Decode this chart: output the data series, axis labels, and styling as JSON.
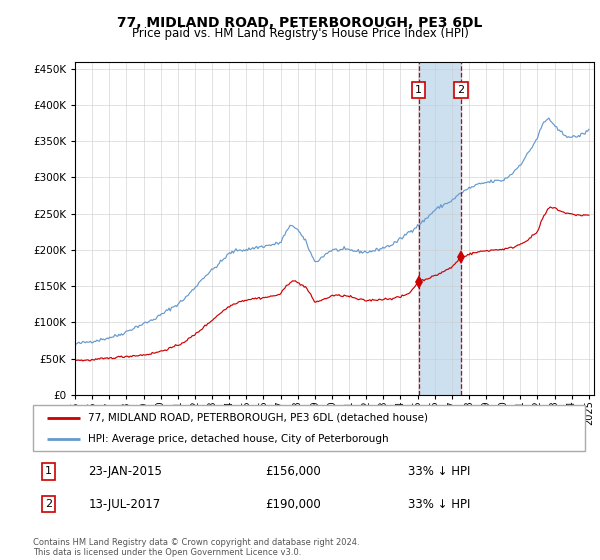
{
  "title": "77, MIDLAND ROAD, PETERBOROUGH, PE3 6DL",
  "subtitle": "Price paid vs. HM Land Registry's House Price Index (HPI)",
  "footnote": "Contains HM Land Registry data © Crown copyright and database right 2024.\nThis data is licensed under the Open Government Licence v3.0.",
  "legend_line1": "77, MIDLAND ROAD, PETERBOROUGH, PE3 6DL (detached house)",
  "legend_line2": "HPI: Average price, detached house, City of Peterborough",
  "transaction1_date": "23-JAN-2015",
  "transaction1_price": "£156,000",
  "transaction1_hpi": "33% ↓ HPI",
  "transaction2_date": "13-JUL-2017",
  "transaction2_price": "£190,000",
  "transaction2_hpi": "33% ↓ HPI",
  "color_red": "#cc0000",
  "color_blue": "#6699cc",
  "color_shading": "#cce0f0",
  "bg_color": "#f0f0f0",
  "ylim": [
    0,
    460000
  ],
  "yticks": [
    0,
    50000,
    100000,
    150000,
    200000,
    250000,
    300000,
    350000,
    400000,
    450000
  ],
  "xlim_start": 1995.0,
  "xlim_end": 2025.3,
  "transaction1_x": 2015.06,
  "transaction1_y": 156000,
  "transaction2_x": 2017.53,
  "transaction2_y": 190000,
  "hpi_blue_anchors": [
    [
      1995.0,
      70000
    ],
    [
      1995.5,
      72000
    ],
    [
      1996.0,
      74000
    ],
    [
      1996.5,
      76000
    ],
    [
      1997.0,
      79000
    ],
    [
      1997.5,
      82000
    ],
    [
      1998.0,
      87000
    ],
    [
      1998.5,
      93000
    ],
    [
      1999.0,
      98000
    ],
    [
      1999.5,
      103000
    ],
    [
      2000.0,
      110000
    ],
    [
      2000.5,
      118000
    ],
    [
      2001.0,
      125000
    ],
    [
      2001.5,
      135000
    ],
    [
      2002.0,
      148000
    ],
    [
      2002.5,
      162000
    ],
    [
      2003.0,
      172000
    ],
    [
      2003.5,
      183000
    ],
    [
      2004.0,
      195000
    ],
    [
      2004.5,
      200000
    ],
    [
      2005.0,
      200000
    ],
    [
      2005.5,
      203000
    ],
    [
      2006.0,
      205000
    ],
    [
      2006.5,
      207000
    ],
    [
      2007.0,
      210000
    ],
    [
      2007.33,
      225000
    ],
    [
      2007.67,
      235000
    ],
    [
      2008.0,
      228000
    ],
    [
      2008.5,
      210000
    ],
    [
      2009.0,
      183000
    ],
    [
      2009.33,
      188000
    ],
    [
      2009.67,
      195000
    ],
    [
      2010.0,
      200000
    ],
    [
      2010.5,
      200000
    ],
    [
      2011.0,
      200000
    ],
    [
      2011.5,
      198000
    ],
    [
      2012.0,
      197000
    ],
    [
      2012.5,
      199000
    ],
    [
      2013.0,
      203000
    ],
    [
      2013.5,
      207000
    ],
    [
      2014.0,
      215000
    ],
    [
      2014.5,
      225000
    ],
    [
      2015.0,
      233000
    ],
    [
      2015.5,
      243000
    ],
    [
      2016.0,
      255000
    ],
    [
      2016.5,
      262000
    ],
    [
      2017.0,
      268000
    ],
    [
      2017.5,
      278000
    ],
    [
      2018.0,
      285000
    ],
    [
      2018.5,
      290000
    ],
    [
      2019.0,
      293000
    ],
    [
      2019.5,
      295000
    ],
    [
      2020.0,
      296000
    ],
    [
      2020.5,
      305000
    ],
    [
      2021.0,
      318000
    ],
    [
      2021.5,
      335000
    ],
    [
      2022.0,
      355000
    ],
    [
      2022.33,
      375000
    ],
    [
      2022.67,
      382000
    ],
    [
      2023.0,
      370000
    ],
    [
      2023.5,
      360000
    ],
    [
      2024.0,
      355000
    ],
    [
      2024.5,
      358000
    ],
    [
      2025.0,
      365000
    ]
  ],
  "hpi_red_anchors": [
    [
      1995.0,
      48000
    ],
    [
      1995.5,
      47500
    ],
    [
      1996.0,
      48000
    ],
    [
      1996.5,
      49500
    ],
    [
      1997.0,
      50500
    ],
    [
      1997.5,
      52000
    ],
    [
      1998.0,
      53000
    ],
    [
      1998.5,
      54000
    ],
    [
      1999.0,
      55000
    ],
    [
      1999.5,
      57000
    ],
    [
      2000.0,
      60000
    ],
    [
      2000.5,
      64000
    ],
    [
      2001.0,
      68000
    ],
    [
      2001.5,
      75000
    ],
    [
      2002.0,
      83000
    ],
    [
      2002.5,
      93000
    ],
    [
      2003.0,
      103000
    ],
    [
      2003.5,
      113000
    ],
    [
      2004.0,
      122000
    ],
    [
      2004.5,
      128000
    ],
    [
      2005.0,
      131000
    ],
    [
      2005.5,
      133000
    ],
    [
      2006.0,
      134000
    ],
    [
      2006.5,
      136000
    ],
    [
      2007.0,
      139000
    ],
    [
      2007.33,
      150000
    ],
    [
      2007.67,
      158000
    ],
    [
      2008.0,
      155000
    ],
    [
      2008.5,
      148000
    ],
    [
      2009.0,
      128000
    ],
    [
      2009.33,
      130000
    ],
    [
      2009.67,
      133000
    ],
    [
      2010.0,
      137000
    ],
    [
      2010.5,
      137000
    ],
    [
      2011.0,
      136000
    ],
    [
      2011.5,
      132000
    ],
    [
      2012.0,
      130000
    ],
    [
      2012.5,
      131000
    ],
    [
      2013.0,
      132000
    ],
    [
      2013.5,
      133000
    ],
    [
      2014.0,
      135000
    ],
    [
      2014.5,
      140000
    ],
    [
      2015.06,
      156000
    ],
    [
      2015.5,
      160000
    ],
    [
      2016.0,
      164000
    ],
    [
      2016.5,
      170000
    ],
    [
      2017.0,
      176000
    ],
    [
      2017.53,
      190000
    ],
    [
      2018.0,
      194000
    ],
    [
      2018.5,
      197000
    ],
    [
      2019.0,
      199000
    ],
    [
      2019.5,
      200000
    ],
    [
      2020.0,
      201000
    ],
    [
      2020.5,
      203000
    ],
    [
      2021.0,
      208000
    ],
    [
      2021.5,
      215000
    ],
    [
      2022.0,
      225000
    ],
    [
      2022.33,
      245000
    ],
    [
      2022.67,
      258000
    ],
    [
      2023.0,
      258000
    ],
    [
      2023.5,
      252000
    ],
    [
      2024.0,
      249000
    ],
    [
      2024.5,
      248000
    ],
    [
      2025.0,
      248000
    ]
  ]
}
